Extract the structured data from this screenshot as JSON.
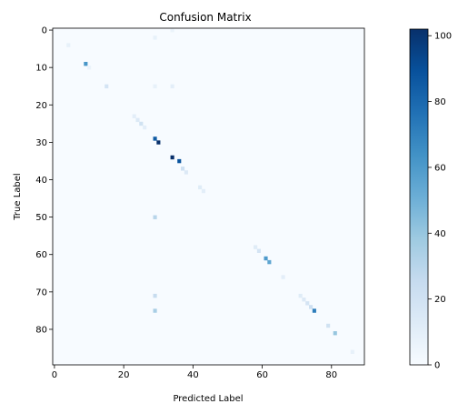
{
  "chart_data": {
    "type": "heatmap",
    "title": "Confusion Matrix",
    "xlabel": "Predicted Label",
    "ylabel": "True Label",
    "n_classes": 90,
    "x_ticks": [
      0,
      20,
      40,
      60,
      80
    ],
    "y_ticks": [
      0,
      10,
      20,
      30,
      40,
      50,
      60,
      70,
      80
    ],
    "colorbar": {
      "min": 0,
      "max": 102,
      "ticks": [
        0,
        20,
        40,
        60,
        80,
        100
      ]
    },
    "colormap": [
      "#f7fbff",
      "#deebf7",
      "#c6dbef",
      "#9ecae1",
      "#6baed6",
      "#4292c6",
      "#2171b5",
      "#08519c",
      "#08306b"
    ],
    "nonzero_cells": [
      [
        4,
        4,
        8
      ],
      [
        9,
        9,
        62
      ],
      [
        10,
        10,
        6
      ],
      [
        15,
        15,
        18
      ],
      [
        23,
        23,
        10
      ],
      [
        24,
        24,
        14
      ],
      [
        25,
        25,
        20
      ],
      [
        26,
        26,
        10
      ],
      [
        29,
        29,
        85
      ],
      [
        30,
        30,
        102
      ],
      [
        34,
        34,
        102
      ],
      [
        35,
        36,
        88
      ],
      [
        37,
        37,
        22
      ],
      [
        38,
        38,
        14
      ],
      [
        42,
        42,
        12
      ],
      [
        43,
        43,
        10
      ],
      [
        50,
        29,
        30
      ],
      [
        58,
        58,
        12
      ],
      [
        59,
        59,
        18
      ],
      [
        61,
        61,
        60
      ],
      [
        62,
        62,
        55
      ],
      [
        66,
        66,
        10
      ],
      [
        71,
        29,
        25
      ],
      [
        71,
        71,
        12
      ],
      [
        72,
        72,
        14
      ],
      [
        73,
        73,
        18
      ],
      [
        74,
        74,
        22
      ],
      [
        75,
        29,
        35
      ],
      [
        75,
        75,
        72
      ],
      [
        79,
        79,
        20
      ],
      [
        81,
        81,
        40
      ],
      [
        86,
        86,
        8
      ],
      [
        15,
        29,
        8
      ],
      [
        15,
        34,
        10
      ],
      [
        0,
        34,
        6
      ],
      [
        2,
        29,
        8
      ]
    ]
  }
}
